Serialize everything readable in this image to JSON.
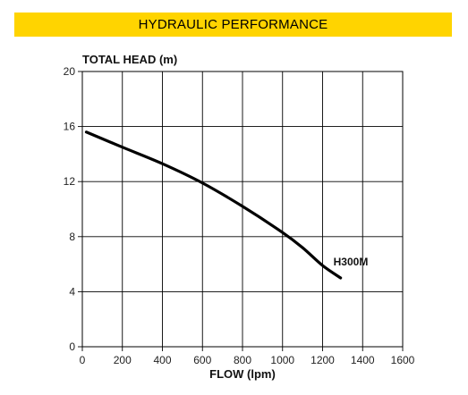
{
  "banner": {
    "title": "HYDRAULIC PERFORMANCE",
    "color": "#FFD400"
  },
  "chart_data": {
    "type": "line",
    "title": "HYDRAULIC PERFORMANCE",
    "xlabel": "FLOW (lpm)",
    "ylabel": "TOTAL HEAD (m)",
    "xlim": [
      0,
      1600
    ],
    "ylim": [
      0,
      20
    ],
    "xticks": [
      0,
      200,
      400,
      600,
      800,
      1000,
      1200,
      1400,
      1600
    ],
    "yticks": [
      0,
      4,
      8,
      12,
      16,
      20
    ],
    "grid": true,
    "series": [
      {
        "name": "H300M",
        "color": "#000000",
        "x": [
          20,
          200,
          400,
          600,
          800,
          1000,
          1100,
          1200,
          1290
        ],
        "y": [
          15.6,
          14.5,
          13.3,
          11.9,
          10.2,
          8.3,
          7.2,
          5.9,
          5.0
        ]
      }
    ]
  }
}
